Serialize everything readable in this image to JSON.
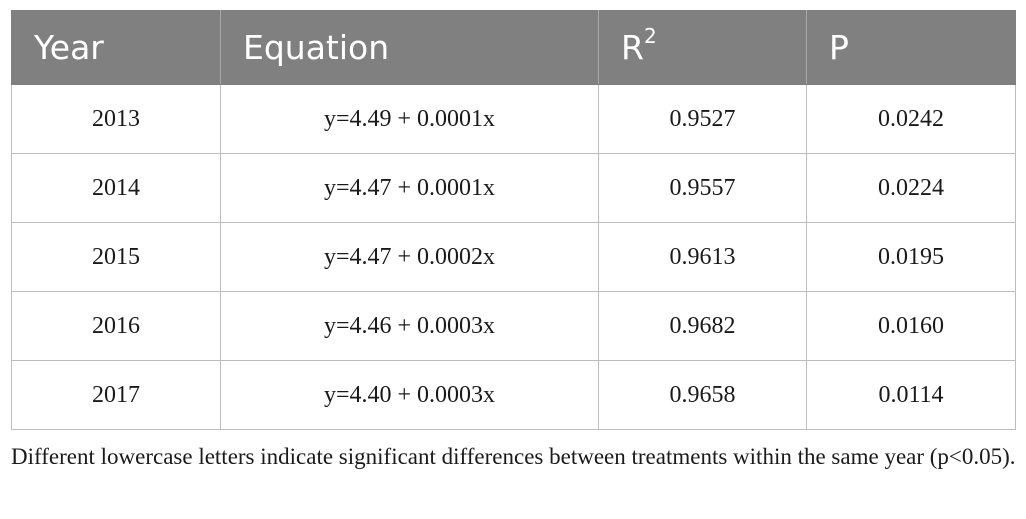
{
  "table": {
    "headers": {
      "year": "Year",
      "equation": "Equation",
      "r2_base": "R",
      "r2_sup": "2",
      "p": "P"
    },
    "rows": [
      {
        "year": "2013",
        "equation": "y=4.49 + 0.0001x",
        "r2": "0.9527",
        "p": "0.0242"
      },
      {
        "year": "2014",
        "equation": "y=4.47 + 0.0001x",
        "r2": "0.9557",
        "p": "0.0224"
      },
      {
        "year": "2015",
        "equation": "y=4.47 + 0.0002x",
        "r2": "0.9613",
        "p": "0.0195"
      },
      {
        "year": "2016",
        "equation": "y=4.46 + 0.0003x",
        "r2": "0.9682",
        "p": "0.0160"
      },
      {
        "year": "2017",
        "equation": "y=4.40 + 0.0003x",
        "r2": "0.9658",
        "p": "0.0114"
      }
    ]
  },
  "footnote": "Different lowercase letters indicate significant differences between treatments within the same year (p<0.05).",
  "colors": {
    "header_bg": "#808080",
    "header_text": "#ffffff",
    "cell_border": "#bdbdbd"
  }
}
